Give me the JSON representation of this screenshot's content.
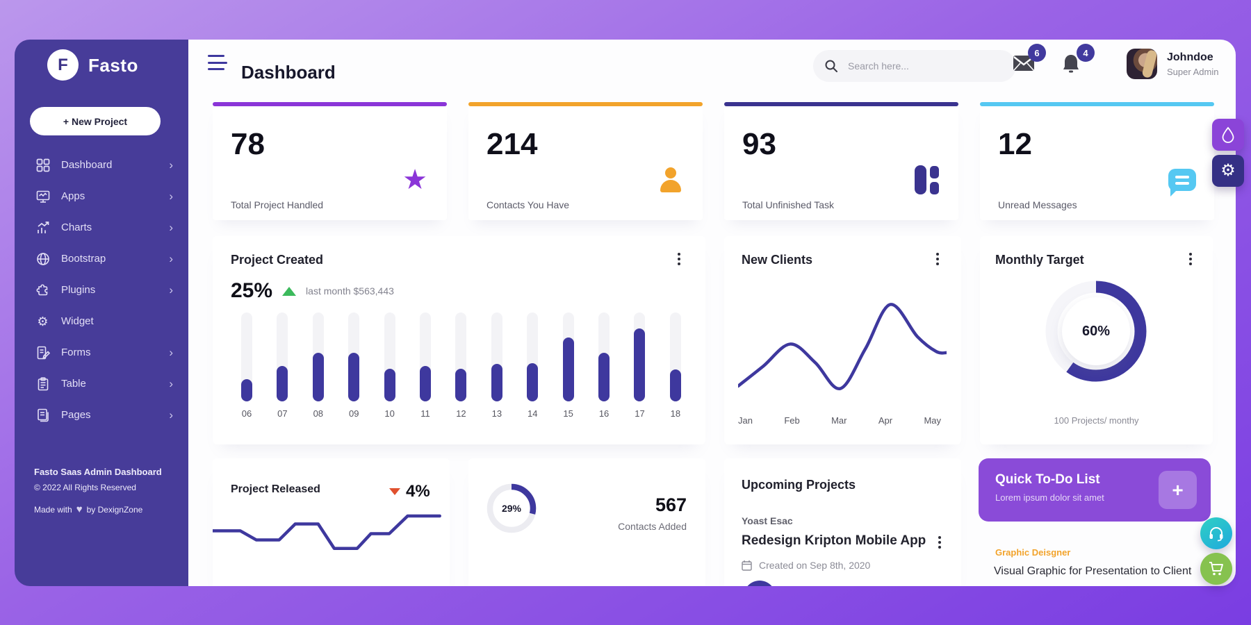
{
  "appearance": {
    "sidebar_bg": "#473c99",
    "page_gradient": [
      "#bb97ec",
      "#7a3de2"
    ],
    "chart_indigo": "#3e389e",
    "accent_purple": "#8b44d8",
    "accent_orange": "#f2a32b",
    "accent_dark_indigo": "#3a338f",
    "accent_sky": "#55c8f2",
    "todo_purple": "#8a4bd8",
    "badge_indigo": "#413a9e",
    "trend_up_green": "#3cba5c",
    "trend_down_red": "#e0502e",
    "headset_teal": "#27c2cd",
    "cart_green": "#86c24f"
  },
  "sidebar": {
    "logo_letter": "F",
    "brand": "Fasto",
    "new_project_label": "+ New Project",
    "items": [
      {
        "label": "Dashboard",
        "icon": "grid-icon",
        "chevron": true
      },
      {
        "label": "Apps",
        "icon": "monitor-icon",
        "chevron": true
      },
      {
        "label": "Charts",
        "icon": "bar-chart-icon",
        "chevron": true
      },
      {
        "label": "Bootstrap",
        "icon": "globe-icon",
        "chevron": true
      },
      {
        "label": "Plugins",
        "icon": "puzzle-icon",
        "chevron": true
      },
      {
        "label": "Widget",
        "icon": "gear-icon",
        "chevron": false
      },
      {
        "label": "Forms",
        "icon": "form-icon",
        "chevron": true
      },
      {
        "label": "Table",
        "icon": "clipboard-icon",
        "chevron": true
      },
      {
        "label": "Pages",
        "icon": "pages-icon",
        "chevron": true
      }
    ],
    "footer_title": "Fasto Saas Admin Dashboard",
    "footer_copyright": "© 2022 All Rights Reserved",
    "footer_made_prefix": "Made with",
    "footer_made_suffix": "by DexignZone"
  },
  "topbar": {
    "title": "Dashboard",
    "search_placeholder": "Search here...",
    "mail_badge": "6",
    "bell_badge": "4",
    "user_name": "Johndoe",
    "user_role": "Super Admin"
  },
  "stats": [
    {
      "value": "78",
      "label": "Total Project Handled",
      "icon": "star-icon",
      "accent": "#8b35d8"
    },
    {
      "value": "214",
      "label": "Contacts You Have",
      "icon": "person-icon",
      "accent": "#f2a32b"
    },
    {
      "value": "93",
      "label": "Total Unfinished Task",
      "icon": "tiles-icon",
      "accent": "#3a338f"
    },
    {
      "value": "12",
      "label": "Unread Messages",
      "icon": "chat-icon",
      "accent": "#55c8f2"
    }
  ],
  "project_created": {
    "title": "Project Created",
    "percent": "25%",
    "trend": "up",
    "note": "last month $563,443",
    "chart_data": {
      "type": "bar",
      "categories": [
        "06",
        "07",
        "08",
        "09",
        "10",
        "11",
        "12",
        "13",
        "14",
        "15",
        "16",
        "17",
        "18"
      ],
      "values": [
        25,
        40,
        55,
        55,
        37,
        40,
        37,
        42,
        43,
        72,
        55,
        82,
        36
      ],
      "ylabel": "percent of track height",
      "ylim": [
        0,
        100
      ],
      "grid": false
    }
  },
  "new_clients": {
    "title": "New Clients",
    "chart_data": {
      "type": "line",
      "x_labels": [
        "Jan",
        "Feb",
        "Mar",
        "Apr",
        "May"
      ],
      "points": [
        [
          0,
          82
        ],
        [
          12,
          66
        ],
        [
          25,
          48
        ],
        [
          37,
          63
        ],
        [
          49,
          84
        ],
        [
          61,
          52
        ],
        [
          73,
          16
        ],
        [
          86,
          42
        ],
        [
          95,
          54
        ],
        [
          100,
          55
        ]
      ],
      "smooth": true,
      "grid": false
    }
  },
  "monthly_target": {
    "title": "Monthly Target",
    "percent_label": "60%",
    "caption": "100 Projects/ monthy",
    "chart_data": {
      "type": "pie",
      "style": "donut",
      "value": 60,
      "total": 100
    }
  },
  "project_released": {
    "title": "Project Released",
    "percent": "4%",
    "trend": "down",
    "chart_data": {
      "type": "line",
      "points": [
        [
          0,
          37
        ],
        [
          12,
          37
        ],
        [
          19,
          53
        ],
        [
          29,
          53
        ],
        [
          36,
          25
        ],
        [
          46,
          25
        ],
        [
          53,
          68
        ],
        [
          63,
          68
        ],
        [
          69,
          42
        ],
        [
          77,
          42
        ],
        [
          85,
          11
        ],
        [
          99,
          11
        ]
      ],
      "smooth": false,
      "grid": false
    }
  },
  "contacts_added": {
    "percent_label": "29%",
    "value": "567",
    "label": "Contacts Added",
    "chart_data": {
      "type": "pie",
      "style": "donut",
      "value": 29,
      "total": 100
    }
  },
  "upcoming": {
    "title": "Upcoming Projects",
    "client": "Yoast Esac",
    "project": "Redesign Kripton Mobile App",
    "created": "Created on Sep 8th, 2020"
  },
  "todo": {
    "title": "Quick To-Do List",
    "subtitle": "Lorem ipsum dolor sit amet",
    "add_label": "+"
  },
  "task": {
    "tag": "Graphic Deisgner",
    "title": "Visual Graphic for Presentation to Client"
  }
}
